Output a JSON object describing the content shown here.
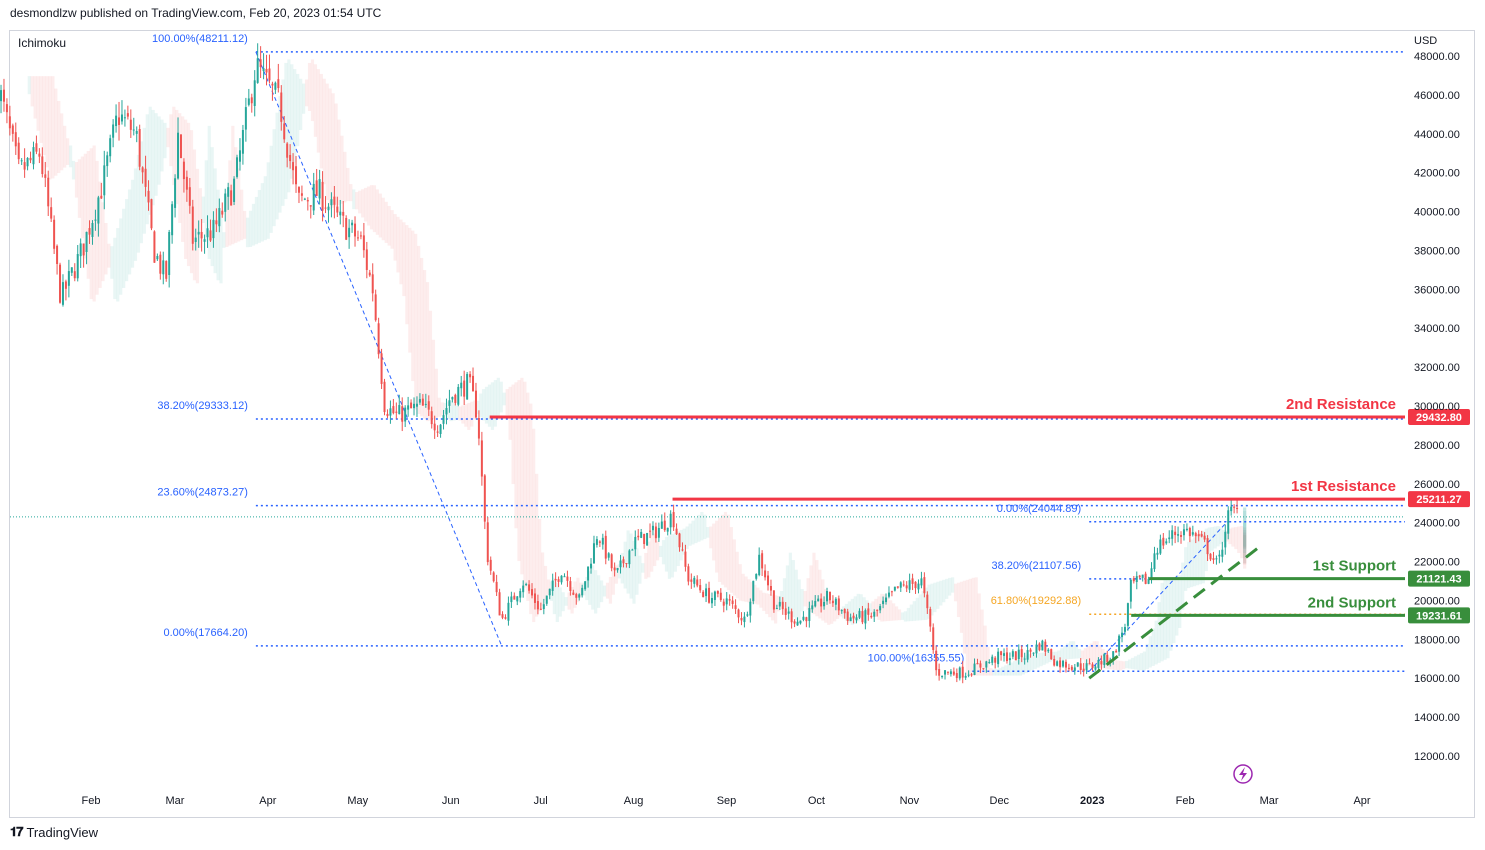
{
  "header": {
    "published": "desmondlzw published on TradingView.com, Feb 20, 2023 01:54 UTC"
  },
  "indicator": {
    "name": "Ichimoku"
  },
  "footer": {
    "brand": "TradingView"
  },
  "colors": {
    "up": "#26a69a",
    "down": "#ef5350",
    "fib": "#2962ff",
    "fib_gold": "#f5a623",
    "resistance": "#f23645",
    "support": "#388e3c"
  },
  "chart_data": {
    "type": "candlestick",
    "currency": "USD",
    "y_ticks": [
      12000,
      14000,
      16000,
      18000,
      20000,
      22000,
      24000,
      26000,
      28000,
      30000,
      32000,
      34000,
      36000,
      38000,
      40000,
      42000,
      44000,
      46000,
      48000
    ],
    "y_tick_labels": [
      "12000.00",
      "14000.00",
      "16000.00",
      "18000.00",
      "20000.00",
      "22000.00",
      "24000.00",
      "26000.00",
      "28000.00",
      "30000.00",
      "32000.00",
      "34000.00",
      "36000.00",
      "38000.00",
      "40000.00",
      "42000.00",
      "44000.00",
      "46000.00",
      "48000.00"
    ],
    "x_ticks": [
      {
        "label": "Feb",
        "date": "2022-02-01"
      },
      {
        "label": "Mar",
        "date": "2022-03-01"
      },
      {
        "label": "Apr",
        "date": "2022-04-01"
      },
      {
        "label": "May",
        "date": "2022-05-01"
      },
      {
        "label": "Jun",
        "date": "2022-06-01"
      },
      {
        "label": "Jul",
        "date": "2022-07-01"
      },
      {
        "label": "Aug",
        "date": "2022-08-01"
      },
      {
        "label": "Sep",
        "date": "2022-09-01"
      },
      {
        "label": "Oct",
        "date": "2022-10-01"
      },
      {
        "label": "Nov",
        "date": "2022-11-01"
      },
      {
        "label": "Dec",
        "date": "2022-12-01"
      },
      {
        "label": "2023",
        "date": "2023-01-01"
      },
      {
        "label": "Feb",
        "date": "2023-02-01"
      },
      {
        "label": "Mar",
        "date": "2023-03-01"
      },
      {
        "label": "Apr",
        "date": "2023-04-01"
      }
    ],
    "price_path": [
      {
        "date": "2022-01-01",
        "price": 46500
      },
      {
        "date": "2022-01-08",
        "price": 42000
      },
      {
        "date": "2022-01-15",
        "price": 43000
      },
      {
        "date": "2022-01-22",
        "price": 35500
      },
      {
        "date": "2022-01-29",
        "price": 38000
      },
      {
        "date": "2022-02-05",
        "price": 41500
      },
      {
        "date": "2022-02-10",
        "price": 45000
      },
      {
        "date": "2022-02-16",
        "price": 44000
      },
      {
        "date": "2022-02-22",
        "price": 38000
      },
      {
        "date": "2022-02-26",
        "price": 36500
      },
      {
        "date": "2022-03-02",
        "price": 44000
      },
      {
        "date": "2022-03-07",
        "price": 38500
      },
      {
        "date": "2022-03-14",
        "price": 39000
      },
      {
        "date": "2022-03-21",
        "price": 41500
      },
      {
        "date": "2022-03-28",
        "price": 47500
      },
      {
        "date": "2022-04-05",
        "price": 45500
      },
      {
        "date": "2022-04-11",
        "price": 40500
      },
      {
        "date": "2022-04-18",
        "price": 41000
      },
      {
        "date": "2022-04-25",
        "price": 39500
      },
      {
        "date": "2022-05-02",
        "price": 38500
      },
      {
        "date": "2022-05-06",
        "price": 36000
      },
      {
        "date": "2022-05-10",
        "price": 30000
      },
      {
        "date": "2022-05-14",
        "price": 29500
      },
      {
        "date": "2022-05-22",
        "price": 30000
      },
      {
        "date": "2022-05-28",
        "price": 29000
      },
      {
        "date": "2022-06-01",
        "price": 30500
      },
      {
        "date": "2022-06-07",
        "price": 31200
      },
      {
        "date": "2022-06-10",
        "price": 29500
      },
      {
        "date": "2022-06-13",
        "price": 22500
      },
      {
        "date": "2022-06-18",
        "price": 19000
      },
      {
        "date": "2022-06-25",
        "price": 21000
      },
      {
        "date": "2022-07-01",
        "price": 19500
      },
      {
        "date": "2022-07-08",
        "price": 21600
      },
      {
        "date": "2022-07-14",
        "price": 20000
      },
      {
        "date": "2022-07-20",
        "price": 23500
      },
      {
        "date": "2022-07-26",
        "price": 21200
      },
      {
        "date": "2022-08-01",
        "price": 23000
      },
      {
        "date": "2022-08-08",
        "price": 23500
      },
      {
        "date": "2022-08-14",
        "price": 24400
      },
      {
        "date": "2022-08-19",
        "price": 21200
      },
      {
        "date": "2022-08-26",
        "price": 20200
      },
      {
        "date": "2022-09-01",
        "price": 20000
      },
      {
        "date": "2022-09-07",
        "price": 19000
      },
      {
        "date": "2022-09-12",
        "price": 22300
      },
      {
        "date": "2022-09-17",
        "price": 19800
      },
      {
        "date": "2022-09-25",
        "price": 18900
      },
      {
        "date": "2022-10-05",
        "price": 20200
      },
      {
        "date": "2022-10-12",
        "price": 19100
      },
      {
        "date": "2022-10-20",
        "price": 19200
      },
      {
        "date": "2022-10-28",
        "price": 20600
      },
      {
        "date": "2022-11-05",
        "price": 21000
      },
      {
        "date": "2022-11-08",
        "price": 18500
      },
      {
        "date": "2022-11-10",
        "price": 16300
      },
      {
        "date": "2022-11-20",
        "price": 16300
      },
      {
        "date": "2022-12-01",
        "price": 17100
      },
      {
        "date": "2022-12-10",
        "price": 17200
      },
      {
        "date": "2022-12-15",
        "price": 17800
      },
      {
        "date": "2022-12-20",
        "price": 16800
      },
      {
        "date": "2022-12-31",
        "price": 16550
      },
      {
        "date": "2023-01-08",
        "price": 17200
      },
      {
        "date": "2023-01-12",
        "price": 18800
      },
      {
        "date": "2023-01-14",
        "price": 20800
      },
      {
        "date": "2023-01-20",
        "price": 21100
      },
      {
        "date": "2023-01-22",
        "price": 22700
      },
      {
        "date": "2023-01-29",
        "price": 23500
      },
      {
        "date": "2023-02-02",
        "price": 23600
      },
      {
        "date": "2023-02-08",
        "price": 22800
      },
      {
        "date": "2023-02-12",
        "price": 21700
      },
      {
        "date": "2023-02-15",
        "price": 24300
      },
      {
        "date": "2023-02-17",
        "price": 24600
      },
      {
        "date": "2023-02-19",
        "price": 24500
      }
    ],
    "fib_sets": [
      {
        "levels": [
          {
            "label": "100.00%(48211.12)",
            "value": 48211.12,
            "start": "2022-03-28"
          },
          {
            "label": "38.20%(29333.12)",
            "value": 29333.12,
            "start": "2022-03-28"
          },
          {
            "label": "23.60%(24873.27)",
            "value": 24873.27,
            "start": "2022-03-28"
          },
          {
            "label": "0.00%(17664.20)",
            "value": 17664.2,
            "start": "2022-03-28"
          }
        ]
      },
      {
        "levels": [
          {
            "label": "0.00%(24044.89)",
            "value": 24044.89,
            "start": "2022-12-31"
          },
          {
            "label": "38.20%(21107.56)",
            "value": 21107.56,
            "start": "2022-12-31"
          },
          {
            "label": "61.80%(19292.88)",
            "value": 19292.88,
            "start": "2022-12-31",
            "gold": true
          },
          {
            "label": "100.00%(16355.55)",
            "value": 16355.55,
            "start": "2022-11-22"
          }
        ]
      }
    ],
    "levels": [
      {
        "label": "2nd Resistance",
        "value": 29432.8,
        "badge": "29432.80",
        "kind": "resistance",
        "start": "2022-06-14"
      },
      {
        "label": "1st Resistance",
        "value": 25211.27,
        "badge": "25211.27",
        "kind": "resistance",
        "start": "2022-08-14"
      },
      {
        "label": "1st Support",
        "value": 21121.43,
        "badge": "21121.43",
        "kind": "support",
        "start": "2023-01-20"
      },
      {
        "label": "2nd Support",
        "value": 19231.61,
        "badge": "19231.61",
        "kind": "support",
        "start": "2023-01-14"
      }
    ],
    "trendline": {
      "from": {
        "date": "2022-12-31",
        "price": 16000
      },
      "to": {
        "date": "2023-02-27",
        "price": 22900
      }
    },
    "current_price": 24300
  }
}
